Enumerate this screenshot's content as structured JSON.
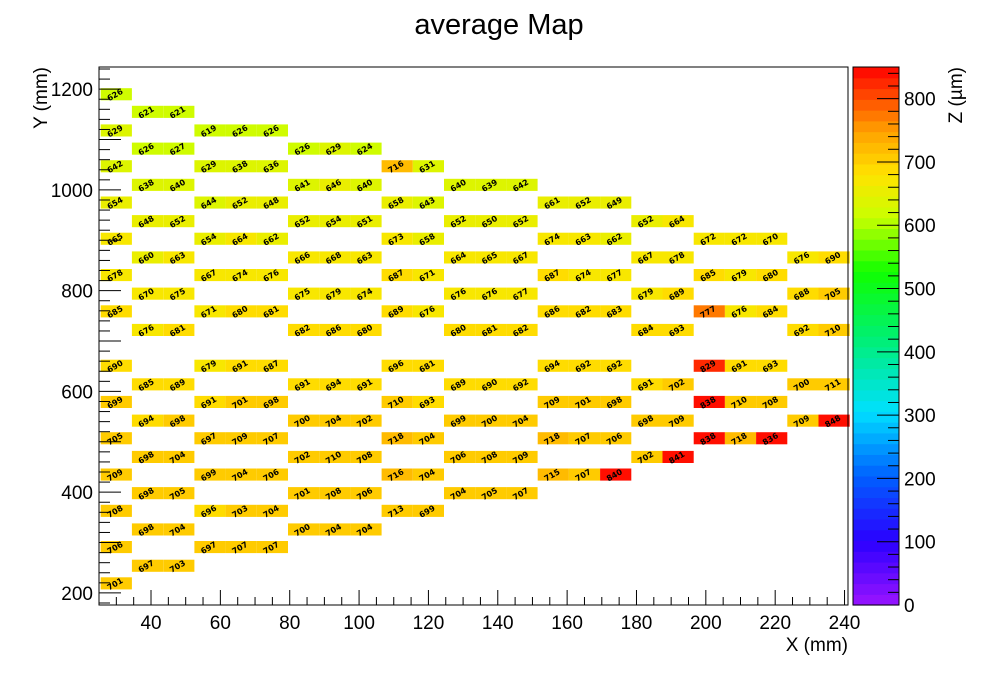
{
  "chart_data": {
    "type": "heatmap",
    "title": "average Map",
    "xlabel": "X (mm)",
    "ylabel": "Y (mm)",
    "zlabel": "Z (µm)",
    "xlim": [
      25,
      241
    ],
    "ylim": [
      176,
      1244
    ],
    "zlim": [
      0,
      850
    ],
    "x_ticks": [
      40,
      60,
      80,
      100,
      120,
      140,
      160,
      180,
      200,
      220,
      240
    ],
    "y_ticks": [
      200,
      400,
      600,
      800,
      1000,
      1200
    ],
    "z_ticks": [
      0,
      100,
      200,
      300,
      400,
      500,
      600,
      700,
      800
    ],
    "cell_width": 9,
    "cell_height": 24,
    "palette": "rainbow (violet-blue-cyan-green-yellow-red)",
    "cells": [
      {
        "x": 30,
        "y": 1190,
        "v": 626
      },
      {
        "x": 39,
        "y": 1155,
        "v": 621
      },
      {
        "x": 48,
        "y": 1155,
        "v": 621
      },
      {
        "x": 30,
        "y": 1118,
        "v": 629
      },
      {
        "x": 57,
        "y": 1118,
        "v": 619
      },
      {
        "x": 66,
        "y": 1118,
        "v": 626
      },
      {
        "x": 75,
        "y": 1118,
        "v": 626
      },
      {
        "x": 39,
        "y": 1082,
        "v": 626
      },
      {
        "x": 48,
        "y": 1082,
        "v": 627
      },
      {
        "x": 84,
        "y": 1082,
        "v": 626
      },
      {
        "x": 93,
        "y": 1082,
        "v": 629
      },
      {
        "x": 102,
        "y": 1082,
        "v": 624
      },
      {
        "x": 30,
        "y": 1047,
        "v": 642
      },
      {
        "x": 57,
        "y": 1047,
        "v": 629
      },
      {
        "x": 66,
        "y": 1047,
        "v": 638
      },
      {
        "x": 75,
        "y": 1047,
        "v": 636
      },
      {
        "x": 111,
        "y": 1047,
        "v": 716
      },
      {
        "x": 120,
        "y": 1047,
        "v": 631
      },
      {
        "x": 39,
        "y": 1010,
        "v": 638
      },
      {
        "x": 48,
        "y": 1010,
        "v": 640
      },
      {
        "x": 84,
        "y": 1010,
        "v": 641
      },
      {
        "x": 93,
        "y": 1010,
        "v": 646
      },
      {
        "x": 102,
        "y": 1010,
        "v": 640
      },
      {
        "x": 129,
        "y": 1010,
        "v": 640
      },
      {
        "x": 138,
        "y": 1010,
        "v": 639
      },
      {
        "x": 147,
        "y": 1010,
        "v": 642
      },
      {
        "x": 30,
        "y": 975,
        "v": 654
      },
      {
        "x": 57,
        "y": 975,
        "v": 644
      },
      {
        "x": 66,
        "y": 975,
        "v": 652
      },
      {
        "x": 75,
        "y": 975,
        "v": 648
      },
      {
        "x": 111,
        "y": 975,
        "v": 658
      },
      {
        "x": 120,
        "y": 975,
        "v": 643
      },
      {
        "x": 156,
        "y": 975,
        "v": 661
      },
      {
        "x": 165,
        "y": 975,
        "v": 652
      },
      {
        "x": 174,
        "y": 975,
        "v": 649
      },
      {
        "x": 39,
        "y": 938,
        "v": 648
      },
      {
        "x": 48,
        "y": 938,
        "v": 652
      },
      {
        "x": 84,
        "y": 938,
        "v": 652
      },
      {
        "x": 93,
        "y": 938,
        "v": 654
      },
      {
        "x": 102,
        "y": 938,
        "v": 651
      },
      {
        "x": 129,
        "y": 938,
        "v": 652
      },
      {
        "x": 138,
        "y": 938,
        "v": 650
      },
      {
        "x": 147,
        "y": 938,
        "v": 652
      },
      {
        "x": 183,
        "y": 938,
        "v": 652
      },
      {
        "x": 192,
        "y": 938,
        "v": 664
      },
      {
        "x": 30,
        "y": 903,
        "v": 665
      },
      {
        "x": 57,
        "y": 903,
        "v": 654
      },
      {
        "x": 66,
        "y": 903,
        "v": 664
      },
      {
        "x": 75,
        "y": 903,
        "v": 662
      },
      {
        "x": 111,
        "y": 903,
        "v": 673
      },
      {
        "x": 120,
        "y": 903,
        "v": 658
      },
      {
        "x": 156,
        "y": 903,
        "v": 674
      },
      {
        "x": 165,
        "y": 903,
        "v": 663
      },
      {
        "x": 174,
        "y": 903,
        "v": 662
      },
      {
        "x": 201,
        "y": 903,
        "v": 672
      },
      {
        "x": 210,
        "y": 903,
        "v": 672
      },
      {
        "x": 219,
        "y": 903,
        "v": 670
      },
      {
        "x": 39,
        "y": 866,
        "v": 660
      },
      {
        "x": 48,
        "y": 866,
        "v": 663
      },
      {
        "x": 84,
        "y": 866,
        "v": 666
      },
      {
        "x": 93,
        "y": 866,
        "v": 668
      },
      {
        "x": 102,
        "y": 866,
        "v": 663
      },
      {
        "x": 129,
        "y": 866,
        "v": 664
      },
      {
        "x": 138,
        "y": 866,
        "v": 665
      },
      {
        "x": 147,
        "y": 866,
        "v": 667
      },
      {
        "x": 183,
        "y": 866,
        "v": 667
      },
      {
        "x": 192,
        "y": 866,
        "v": 678
      },
      {
        "x": 228,
        "y": 866,
        "v": 676
      },
      {
        "x": 237,
        "y": 866,
        "v": 690
      },
      {
        "x": 30,
        "y": 831,
        "v": 678
      },
      {
        "x": 57,
        "y": 831,
        "v": 667
      },
      {
        "x": 66,
        "y": 831,
        "v": 674
      },
      {
        "x": 75,
        "y": 831,
        "v": 676
      },
      {
        "x": 111,
        "y": 831,
        "v": 687
      },
      {
        "x": 120,
        "y": 831,
        "v": 671
      },
      {
        "x": 156,
        "y": 831,
        "v": 687
      },
      {
        "x": 165,
        "y": 831,
        "v": 674
      },
      {
        "x": 174,
        "y": 831,
        "v": 677
      },
      {
        "x": 201,
        "y": 831,
        "v": 685
      },
      {
        "x": 210,
        "y": 831,
        "v": 679
      },
      {
        "x": 219,
        "y": 831,
        "v": 680
      },
      {
        "x": 39,
        "y": 794,
        "v": 670
      },
      {
        "x": 48,
        "y": 794,
        "v": 675
      },
      {
        "x": 84,
        "y": 794,
        "v": 675
      },
      {
        "x": 93,
        "y": 794,
        "v": 679
      },
      {
        "x": 102,
        "y": 794,
        "v": 674
      },
      {
        "x": 129,
        "y": 794,
        "v": 676
      },
      {
        "x": 138,
        "y": 794,
        "v": 676
      },
      {
        "x": 147,
        "y": 794,
        "v": 677
      },
      {
        "x": 183,
        "y": 794,
        "v": 679
      },
      {
        "x": 192,
        "y": 794,
        "v": 689
      },
      {
        "x": 228,
        "y": 794,
        "v": 688
      },
      {
        "x": 237,
        "y": 794,
        "v": 705
      },
      {
        "x": 30,
        "y": 759,
        "v": 685
      },
      {
        "x": 57,
        "y": 759,
        "v": 671
      },
      {
        "x": 66,
        "y": 759,
        "v": 680
      },
      {
        "x": 75,
        "y": 759,
        "v": 681
      },
      {
        "x": 111,
        "y": 759,
        "v": 689
      },
      {
        "x": 120,
        "y": 759,
        "v": 676
      },
      {
        "x": 156,
        "y": 759,
        "v": 686
      },
      {
        "x": 165,
        "y": 759,
        "v": 682
      },
      {
        "x": 174,
        "y": 759,
        "v": 683
      },
      {
        "x": 201,
        "y": 759,
        "v": 777
      },
      {
        "x": 210,
        "y": 759,
        "v": 676
      },
      {
        "x": 219,
        "y": 759,
        "v": 684
      },
      {
        "x": 39,
        "y": 722,
        "v": 676
      },
      {
        "x": 48,
        "y": 722,
        "v": 681
      },
      {
        "x": 84,
        "y": 722,
        "v": 682
      },
      {
        "x": 93,
        "y": 722,
        "v": 686
      },
      {
        "x": 102,
        "y": 722,
        "v": 680
      },
      {
        "x": 129,
        "y": 722,
        "v": 680
      },
      {
        "x": 138,
        "y": 722,
        "v": 681
      },
      {
        "x": 147,
        "y": 722,
        "v": 682
      },
      {
        "x": 183,
        "y": 722,
        "v": 684
      },
      {
        "x": 192,
        "y": 722,
        "v": 693
      },
      {
        "x": 228,
        "y": 722,
        "v": 692
      },
      {
        "x": 237,
        "y": 722,
        "v": 710
      },
      {
        "x": 30,
        "y": 651,
        "v": 690
      },
      {
        "x": 57,
        "y": 651,
        "v": 679
      },
      {
        "x": 66,
        "y": 651,
        "v": 691
      },
      {
        "x": 75,
        "y": 651,
        "v": 687
      },
      {
        "x": 111,
        "y": 651,
        "v": 696
      },
      {
        "x": 120,
        "y": 651,
        "v": 681
      },
      {
        "x": 156,
        "y": 651,
        "v": 694
      },
      {
        "x": 165,
        "y": 651,
        "v": 692
      },
      {
        "x": 174,
        "y": 651,
        "v": 692
      },
      {
        "x": 201,
        "y": 651,
        "v": 829
      },
      {
        "x": 210,
        "y": 651,
        "v": 691
      },
      {
        "x": 219,
        "y": 651,
        "v": 693
      },
      {
        "x": 39,
        "y": 614,
        "v": 685
      },
      {
        "x": 48,
        "y": 614,
        "v": 689
      },
      {
        "x": 84,
        "y": 614,
        "v": 691
      },
      {
        "x": 93,
        "y": 614,
        "v": 694
      },
      {
        "x": 102,
        "y": 614,
        "v": 691
      },
      {
        "x": 129,
        "y": 614,
        "v": 689
      },
      {
        "x": 138,
        "y": 614,
        "v": 690
      },
      {
        "x": 147,
        "y": 614,
        "v": 692
      },
      {
        "x": 183,
        "y": 614,
        "v": 691
      },
      {
        "x": 192,
        "y": 614,
        "v": 702
      },
      {
        "x": 228,
        "y": 614,
        "v": 700
      },
      {
        "x": 237,
        "y": 614,
        "v": 711
      },
      {
        "x": 30,
        "y": 579,
        "v": 699
      },
      {
        "x": 57,
        "y": 579,
        "v": 691
      },
      {
        "x": 66,
        "y": 579,
        "v": 701
      },
      {
        "x": 75,
        "y": 579,
        "v": 698
      },
      {
        "x": 111,
        "y": 579,
        "v": 710
      },
      {
        "x": 120,
        "y": 579,
        "v": 693
      },
      {
        "x": 156,
        "y": 579,
        "v": 709
      },
      {
        "x": 165,
        "y": 579,
        "v": 701
      },
      {
        "x": 174,
        "y": 579,
        "v": 698
      },
      {
        "x": 201,
        "y": 579,
        "v": 838
      },
      {
        "x": 210,
        "y": 579,
        "v": 710
      },
      {
        "x": 219,
        "y": 579,
        "v": 708
      },
      {
        "x": 39,
        "y": 542,
        "v": 694
      },
      {
        "x": 48,
        "y": 542,
        "v": 698
      },
      {
        "x": 84,
        "y": 542,
        "v": 700
      },
      {
        "x": 93,
        "y": 542,
        "v": 704
      },
      {
        "x": 102,
        "y": 542,
        "v": 702
      },
      {
        "x": 129,
        "y": 542,
        "v": 699
      },
      {
        "x": 138,
        "y": 542,
        "v": 700
      },
      {
        "x": 147,
        "y": 542,
        "v": 704
      },
      {
        "x": 183,
        "y": 542,
        "v": 698
      },
      {
        "x": 192,
        "y": 542,
        "v": 709
      },
      {
        "x": 228,
        "y": 542,
        "v": 709
      },
      {
        "x": 237,
        "y": 542,
        "v": 848
      },
      {
        "x": 30,
        "y": 507,
        "v": 705
      },
      {
        "x": 57,
        "y": 507,
        "v": 697
      },
      {
        "x": 66,
        "y": 507,
        "v": 709
      },
      {
        "x": 75,
        "y": 507,
        "v": 707
      },
      {
        "x": 111,
        "y": 507,
        "v": 718
      },
      {
        "x": 120,
        "y": 507,
        "v": 704
      },
      {
        "x": 156,
        "y": 507,
        "v": 718
      },
      {
        "x": 165,
        "y": 507,
        "v": 707
      },
      {
        "x": 174,
        "y": 507,
        "v": 706
      },
      {
        "x": 201,
        "y": 507,
        "v": 838
      },
      {
        "x": 210,
        "y": 507,
        "v": 718
      },
      {
        "x": 219,
        "y": 507,
        "v": 836
      },
      {
        "x": 39,
        "y": 470,
        "v": 698
      },
      {
        "x": 48,
        "y": 470,
        "v": 704
      },
      {
        "x": 84,
        "y": 470,
        "v": 702
      },
      {
        "x": 93,
        "y": 470,
        "v": 710
      },
      {
        "x": 102,
        "y": 470,
        "v": 708
      },
      {
        "x": 129,
        "y": 470,
        "v": 706
      },
      {
        "x": 138,
        "y": 470,
        "v": 708
      },
      {
        "x": 147,
        "y": 470,
        "v": 709
      },
      {
        "x": 183,
        "y": 470,
        "v": 702
      },
      {
        "x": 192,
        "y": 470,
        "v": 841
      },
      {
        "x": 30,
        "y": 435,
        "v": 709
      },
      {
        "x": 57,
        "y": 435,
        "v": 699
      },
      {
        "x": 66,
        "y": 435,
        "v": 704
      },
      {
        "x": 75,
        "y": 435,
        "v": 706
      },
      {
        "x": 111,
        "y": 435,
        "v": 716
      },
      {
        "x": 120,
        "y": 435,
        "v": 704
      },
      {
        "x": 156,
        "y": 435,
        "v": 715
      },
      {
        "x": 165,
        "y": 435,
        "v": 707
      },
      {
        "x": 174,
        "y": 435,
        "v": 840
      },
      {
        "x": 39,
        "y": 398,
        "v": 698
      },
      {
        "x": 48,
        "y": 398,
        "v": 705
      },
      {
        "x": 84,
        "y": 398,
        "v": 701
      },
      {
        "x": 93,
        "y": 398,
        "v": 708
      },
      {
        "x": 102,
        "y": 398,
        "v": 706
      },
      {
        "x": 129,
        "y": 398,
        "v": 704
      },
      {
        "x": 138,
        "y": 398,
        "v": 705
      },
      {
        "x": 147,
        "y": 398,
        "v": 707
      },
      {
        "x": 30,
        "y": 363,
        "v": 708
      },
      {
        "x": 57,
        "y": 363,
        "v": 696
      },
      {
        "x": 66,
        "y": 363,
        "v": 703
      },
      {
        "x": 75,
        "y": 363,
        "v": 704
      },
      {
        "x": 111,
        "y": 363,
        "v": 713
      },
      {
        "x": 120,
        "y": 363,
        "v": 699
      },
      {
        "x": 39,
        "y": 326,
        "v": 698
      },
      {
        "x": 48,
        "y": 326,
        "v": 704
      },
      {
        "x": 84,
        "y": 326,
        "v": 700
      },
      {
        "x": 93,
        "y": 326,
        "v": 704
      },
      {
        "x": 102,
        "y": 326,
        "v": 704
      },
      {
        "x": 30,
        "y": 291,
        "v": 706
      },
      {
        "x": 57,
        "y": 291,
        "v": 697
      },
      {
        "x": 66,
        "y": 291,
        "v": 707
      },
      {
        "x": 75,
        "y": 291,
        "v": 707
      },
      {
        "x": 39,
        "y": 254,
        "v": 697
      },
      {
        "x": 48,
        "y": 254,
        "v": 703
      },
      {
        "x": 30,
        "y": 219,
        "v": 701
      }
    ]
  }
}
